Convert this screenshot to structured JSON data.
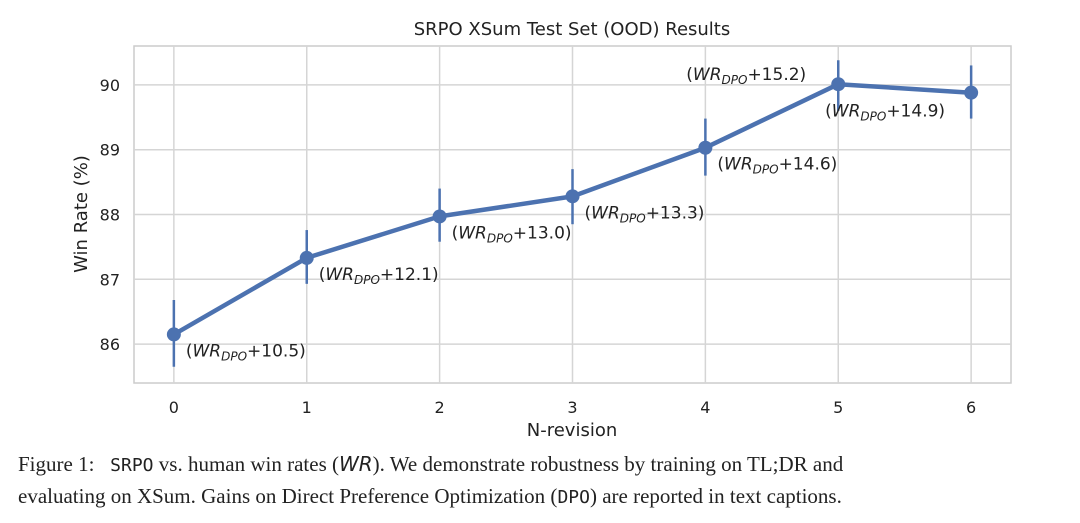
{
  "chart_data": {
    "type": "line",
    "title": "SRPO XSum Test Set (OOD) Results",
    "xlabel": "N-revision",
    "ylabel": "Win Rate (%)",
    "x": [
      0,
      1,
      2,
      3,
      4,
      5,
      6
    ],
    "y": [
      86.15,
      87.33,
      87.97,
      88.28,
      89.03,
      90.01,
      89.88
    ],
    "error_low": [
      85.65,
      86.93,
      87.58,
      87.85,
      88.6,
      89.6,
      89.48
    ],
    "error_high": [
      86.68,
      87.76,
      88.4,
      88.7,
      89.48,
      90.38,
      90.3
    ],
    "xlim": [
      -0.3,
      6.3
    ],
    "ylim": [
      85.4,
      90.6
    ],
    "xticks": [
      "0",
      "1",
      "2",
      "3",
      "4",
      "5",
      "6"
    ],
    "yticks": [
      "86",
      "87",
      "88",
      "89",
      "90"
    ],
    "grid": true,
    "color": "#4c72b0",
    "annotations": [
      {
        "x": 0,
        "label_base": "WR",
        "label_sub": "DPO",
        "label_value": "+10.5"
      },
      {
        "x": 1,
        "label_base": "WR",
        "label_sub": "DPO",
        "label_value": "+12.1"
      },
      {
        "x": 2,
        "label_base": "WR",
        "label_sub": "DPO",
        "label_value": "+13.0"
      },
      {
        "x": 3,
        "label_base": "WR",
        "label_sub": "DPO",
        "label_value": "+13.3"
      },
      {
        "x": 4,
        "label_base": "WR",
        "label_sub": "DPO",
        "label_value": "+14.6"
      },
      {
        "x": 5,
        "label_base": "WR",
        "label_sub": "DPO",
        "label_value": "+15.2"
      },
      {
        "x": 6,
        "label_base": "WR",
        "label_sub": "DPO",
        "label_value": "+14.9"
      }
    ]
  },
  "caption": {
    "figure_label": "Figure 1:",
    "method": "SRPO",
    "part1": " vs. human win rates (",
    "wr": "WR",
    "part2": "). We demonstrate robustness by training on TL;DR and",
    "line2a": "evaluating on XSum. Gains on Direct Preference Optimization (",
    "dpo": "DPO",
    "line2b": ")  are reported in text captions."
  }
}
